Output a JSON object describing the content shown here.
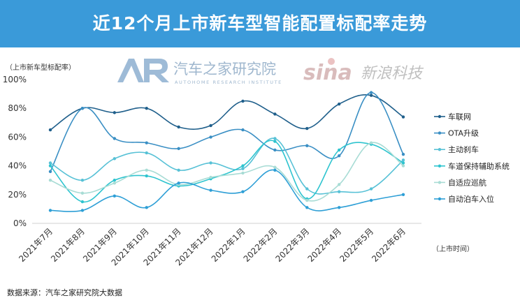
{
  "title": "近12个月上市新车型智能配置标配率走势",
  "source": "数据来源：汽车之家研究院大数据",
  "watermarks": {
    "autohome_text": "汽车之家研究院",
    "autohome_sub": "AUTOHOME RESEARCH INSTITUTE",
    "sina_text": "新浪科技",
    "sina_logo": "sina"
  },
  "colors": {
    "title_bar": "#3a9ad9",
    "series": [
      "#1f5f8b",
      "#3a8fc4",
      "#57c1d6",
      "#2ec4cf",
      "#a8dcd5",
      "#2e9fd6"
    ]
  },
  "chart_data": {
    "type": "line",
    "ylabel": "（上市新车型标配率）",
    "xlabel": "（上市时间）",
    "ylim": [
      0,
      100
    ],
    "y_ticks": [
      "0%",
      "20%",
      "40%",
      "60%",
      "80%",
      "100%"
    ],
    "categories": [
      "2021年7月",
      "2021年8月",
      "2021年9月",
      "2021年10月",
      "2021年11月",
      "2021年12月",
      "2022年1月",
      "2022年2月",
      "2022年3月",
      "2022年4月",
      "2022年5月",
      "2022年6月"
    ],
    "legend_position": "right",
    "grid": false,
    "series": [
      {
        "name": "车联网",
        "values": [
          65,
          80,
          77,
          80,
          67,
          68,
          85,
          76,
          66,
          83,
          89,
          74
        ]
      },
      {
        "name": "OTA升级",
        "values": [
          36,
          80,
          59,
          56,
          52,
          60,
          65,
          51,
          54,
          47,
          91,
          48
        ]
      },
      {
        "name": "主动刹车",
        "values": [
          42,
          30,
          45,
          49,
          37,
          42,
          38,
          59,
          24,
          22,
          24,
          44
        ]
      },
      {
        "name": "车道保持辅助系统",
        "values": [
          40,
          15,
          30,
          33,
          26,
          31,
          40,
          57,
          17,
          51,
          55,
          42
        ]
      },
      {
        "name": "自适应巡航",
        "values": [
          30,
          21,
          28,
          37,
          27,
          32,
          35,
          39,
          16,
          27,
          56,
          40
        ]
      },
      {
        "name": "自动泊车入位",
        "values": [
          9,
          9,
          19,
          11,
          28,
          23,
          22,
          37,
          11,
          11,
          16,
          20
        ]
      }
    ]
  }
}
